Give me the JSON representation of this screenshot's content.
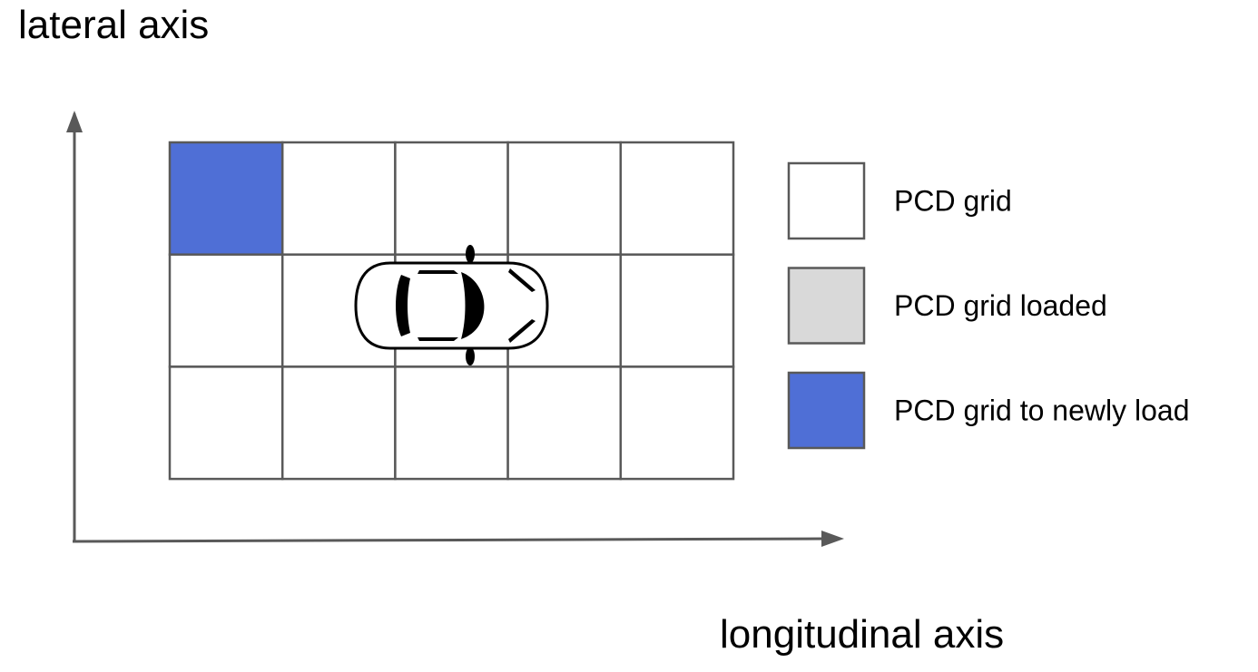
{
  "axes": {
    "y_label": "lateral axis",
    "x_label": "longitudinal axis",
    "color": "#595959"
  },
  "grid": {
    "rows": 3,
    "cols": 5,
    "line_color": "#595959",
    "cells": [
      [
        "new",
        "grid",
        "grid",
        "grid",
        "grid"
      ],
      [
        "grid",
        "grid",
        "grid",
        "grid",
        "grid"
      ],
      [
        "grid",
        "grid",
        "grid",
        "grid",
        "grid"
      ]
    ]
  },
  "vehicle": {
    "icon": "car-top-view-icon"
  },
  "legend": {
    "items": [
      {
        "state": "grid",
        "label": "PCD grid",
        "color": "#ffffff"
      },
      {
        "state": "loaded",
        "label": "PCD grid loaded",
        "color": "#d9d9d9"
      },
      {
        "state": "new",
        "label": "PCD grid to newly load",
        "color": "#4f6fd6"
      }
    ]
  }
}
